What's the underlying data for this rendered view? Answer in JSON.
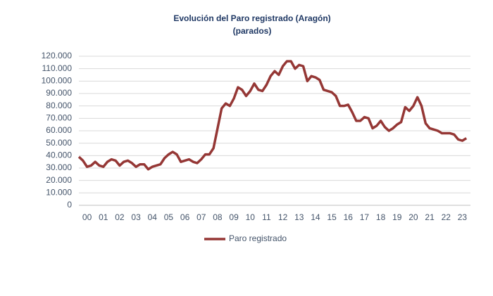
{
  "chart_data": {
    "type": "line",
    "title": "Evolución del Paro registrado (Aragón)",
    "subtitle": "(parados)",
    "x": [
      0,
      0.25,
      0.5,
      0.75,
      1,
      1.25,
      1.5,
      1.75,
      2,
      2.25,
      2.5,
      2.75,
      3,
      3.25,
      3.5,
      3.75,
      4,
      4.25,
      4.5,
      4.75,
      5,
      5.25,
      5.5,
      5.75,
      6,
      6.25,
      6.5,
      6.75,
      7,
      7.25,
      7.5,
      7.75,
      8,
      8.25,
      8.5,
      8.75,
      9,
      9.25,
      9.5,
      9.75,
      10,
      10.25,
      10.5,
      10.75,
      11,
      11.25,
      11.5,
      11.75,
      12,
      12.25,
      12.5,
      12.75,
      13,
      13.25,
      13.5,
      13.75,
      14,
      14.25,
      14.5,
      14.75,
      15,
      15.25,
      15.5,
      15.75,
      16,
      16.25,
      16.5,
      16.75,
      17,
      17.25,
      17.5,
      17.75,
      18,
      18.25,
      18.5,
      18.75,
      19,
      19.25,
      19.5,
      19.75,
      20,
      20.25,
      20.5,
      20.75,
      21,
      21.25,
      21.5,
      21.75,
      22,
      22.25,
      22.5,
      22.75,
      23,
      23.25,
      23.5,
      23.75
    ],
    "series": [
      {
        "name": "Paro registrado",
        "color": "#953735",
        "values": [
          39000,
          36000,
          31000,
          32000,
          35000,
          32000,
          31000,
          35000,
          37000,
          36000,
          32000,
          35000,
          36000,
          34000,
          31000,
          33000,
          33000,
          29000,
          31000,
          32000,
          33000,
          38000,
          41000,
          43000,
          41000,
          35000,
          36000,
          37000,
          35000,
          34000,
          37000,
          41000,
          41000,
          46000,
          62000,
          78000,
          82000,
          80000,
          86000,
          95000,
          93000,
          88000,
          92000,
          98000,
          93000,
          92000,
          97000,
          104000,
          108000,
          105000,
          112000,
          116000,
          116000,
          110000,
          113000,
          112000,
          100000,
          104000,
          103000,
          101000,
          93000,
          92000,
          91000,
          88000,
          80000,
          80000,
          81000,
          75000,
          68000,
          68000,
          71000,
          70000,
          62000,
          64000,
          68000,
          63000,
          60000,
          62000,
          65000,
          67000,
          79000,
          76000,
          80000,
          87000,
          80000,
          66000,
          62000,
          61000,
          60000,
          58000,
          58000,
          58000,
          57000,
          53000,
          52000,
          54000
        ]
      }
    ],
    "xlim": [
      0,
      24
    ],
    "xticks": [
      {
        "value": 0.5,
        "label": "00"
      },
      {
        "value": 1.5,
        "label": "01"
      },
      {
        "value": 2.5,
        "label": "02"
      },
      {
        "value": 3.5,
        "label": "03"
      },
      {
        "value": 4.5,
        "label": "04"
      },
      {
        "value": 5.5,
        "label": "05"
      },
      {
        "value": 6.5,
        "label": "06"
      },
      {
        "value": 7.5,
        "label": "07"
      },
      {
        "value": 8.5,
        "label": "08"
      },
      {
        "value": 9.5,
        "label": "09"
      },
      {
        "value": 10.5,
        "label": "10"
      },
      {
        "value": 11.5,
        "label": "11"
      },
      {
        "value": 12.5,
        "label": "12"
      },
      {
        "value": 13.5,
        "label": "13"
      },
      {
        "value": 14.5,
        "label": "14"
      },
      {
        "value": 15.5,
        "label": "15"
      },
      {
        "value": 16.5,
        "label": "16"
      },
      {
        "value": 17.5,
        "label": "17"
      },
      {
        "value": 18.5,
        "label": "18"
      },
      {
        "value": 19.5,
        "label": "19"
      },
      {
        "value": 20.5,
        "label": "20"
      },
      {
        "value": 21.5,
        "label": "21"
      },
      {
        "value": 22.5,
        "label": "22"
      },
      {
        "value": 23.5,
        "label": "23"
      }
    ],
    "ylim": [
      0,
      120000
    ],
    "yticks": [
      0,
      {
        "value": 10000,
        "label": "10.000"
      },
      {
        "value": 20000,
        "label": "20.000"
      },
      {
        "value": 30000,
        "label": "30.000"
      },
      {
        "value": 40000,
        "label": "40.000"
      },
      {
        "value": 50000,
        "label": "50.000"
      },
      {
        "value": 60000,
        "label": "60.000"
      },
      {
        "value": 70000,
        "label": "70.000"
      },
      {
        "value": 80000,
        "label": "80.000"
      },
      {
        "value": 90000,
        "label": "90.000"
      },
      {
        "value": 100000,
        "label": "100.000"
      },
      {
        "value": 110000,
        "label": "110.000"
      },
      {
        "value": 120000,
        "label": "120.000"
      }
    ],
    "grid": true,
    "legend": "bottom"
  }
}
